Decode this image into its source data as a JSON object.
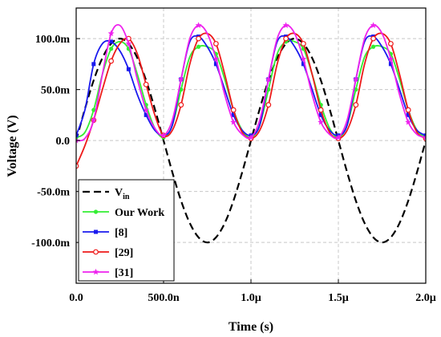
{
  "chart_data": {
    "type": "line",
    "xlabel": "Time (s)",
    "ylabel": "Voltage (V)",
    "xlim": [
      0,
      2e-06
    ],
    "ylim": [
      -0.14,
      0.13
    ],
    "grid": true,
    "legend_position": "bottom-left",
    "x_ticks": [
      {
        "value": 0,
        "label": "0.0"
      },
      {
        "value": 5e-07,
        "label": "500.0n"
      },
      {
        "value": 1e-06,
        "label": "1.0µ"
      },
      {
        "value": 1.5e-06,
        "label": "1.5µ"
      },
      {
        "value": 2e-06,
        "label": "2.0µ"
      }
    ],
    "y_ticks": [
      {
        "value": 0.1,
        "label": "100.0m"
      },
      {
        "value": 0.05,
        "label": "50.0m"
      },
      {
        "value": 0.0,
        "label": "0.0"
      },
      {
        "value": -0.05,
        "label": "-50.0m"
      },
      {
        "value": -0.1,
        "label": "-100.0m"
      }
    ],
    "x": [
      0,
      5e-08,
      1e-07,
      1.5e-07,
      2e-07,
      2.5e-07,
      3e-07,
      3.5e-07,
      4e-07,
      4.5e-07,
      5e-07,
      5.5e-07,
      6e-07,
      6.5e-07,
      7e-07,
      7.5e-07,
      8e-07,
      8.5e-07,
      9e-07,
      9.5e-07,
      1e-06,
      1.05e-06,
      1.1e-06,
      1.15e-06,
      1.2e-06,
      1.25e-06,
      1.3e-06,
      1.35e-06,
      1.4e-06,
      1.45e-06,
      1.5e-06,
      1.55e-06,
      1.6e-06,
      1.65e-06,
      1.7e-06,
      1.75e-06,
      1.8e-06,
      1.85e-06,
      1.9e-06,
      1.95e-06,
      2e-06
    ],
    "series": [
      {
        "name": "V",
        "name_sub": "in",
        "color": "#000000",
        "dash": "9,5",
        "marker": "none",
        "values": [
          0,
          0.031,
          0.059,
          0.081,
          0.095,
          0.1,
          0.095,
          0.081,
          0.059,
          0.031,
          0,
          -0.031,
          -0.059,
          -0.081,
          -0.095,
          -0.1,
          -0.095,
          -0.081,
          -0.059,
          -0.031,
          0,
          0.031,
          0.059,
          0.081,
          0.095,
          0.1,
          0.095,
          0.081,
          0.059,
          0.031,
          0,
          -0.031,
          -0.059,
          -0.081,
          -0.095,
          -0.1,
          -0.095,
          -0.081,
          -0.059,
          -0.031,
          0
        ]
      },
      {
        "name": "Our Work",
        "color": "#33ee33",
        "dash": "",
        "marker": "dot",
        "values": [
          0.003,
          0.008,
          0.03,
          0.065,
          0.09,
          0.097,
          0.09,
          0.065,
          0.035,
          0.012,
          0.003,
          0.015,
          0.05,
          0.082,
          0.092,
          0.092,
          0.085,
          0.06,
          0.03,
          0.01,
          0.003,
          0.015,
          0.05,
          0.085,
          0.097,
          0.097,
          0.09,
          0.065,
          0.035,
          0.012,
          0.003,
          0.015,
          0.05,
          0.082,
          0.092,
          0.092,
          0.085,
          0.06,
          0.03,
          0.01,
          0.003
        ]
      },
      {
        "name": "[8]",
        "color": "#1a1aee",
        "dash": "",
        "marker": "square",
        "values": [
          0.005,
          0.03,
          0.075,
          0.095,
          0.097,
          0.088,
          0.07,
          0.045,
          0.025,
          0.01,
          0.005,
          0.015,
          0.06,
          0.097,
          0.102,
          0.092,
          0.075,
          0.05,
          0.025,
          0.01,
          0.005,
          0.015,
          0.06,
          0.097,
          0.102,
          0.092,
          0.075,
          0.05,
          0.025,
          0.01,
          0.005,
          0.015,
          0.06,
          0.097,
          0.102,
          0.092,
          0.075,
          0.05,
          0.025,
          0.01,
          0.005
        ]
      },
      {
        "name": "[29]",
        "color": "#ee1a1a",
        "dash": "",
        "marker": "circle",
        "values": [
          -0.025,
          -0.005,
          0.02,
          0.05,
          0.078,
          0.095,
          0.1,
          0.085,
          0.055,
          0.025,
          0.005,
          0.01,
          0.035,
          0.075,
          0.1,
          0.105,
          0.095,
          0.065,
          0.03,
          0.008,
          0.002,
          0.01,
          0.035,
          0.075,
          0.1,
          0.105,
          0.095,
          0.065,
          0.03,
          0.008,
          0.002,
          0.01,
          0.035,
          0.075,
          0.1,
          0.105,
          0.095,
          0.065,
          0.03,
          0.008,
          0.002
        ]
      },
      {
        "name": "[31]",
        "color": "#ee22ee",
        "dash": "",
        "marker": "star",
        "values": [
          0,
          0.002,
          0.02,
          0.065,
          0.105,
          0.113,
          0.095,
          0.06,
          0.03,
          0.012,
          0.005,
          0.02,
          0.06,
          0.1,
          0.113,
          0.105,
          0.08,
          0.045,
          0.018,
          0.006,
          0.003,
          0.02,
          0.06,
          0.1,
          0.113,
          0.105,
          0.08,
          0.045,
          0.018,
          0.006,
          0.003,
          0.02,
          0.06,
          0.1,
          0.113,
          0.105,
          0.08,
          0.045,
          0.018,
          0.006,
          0.003
        ]
      }
    ]
  }
}
